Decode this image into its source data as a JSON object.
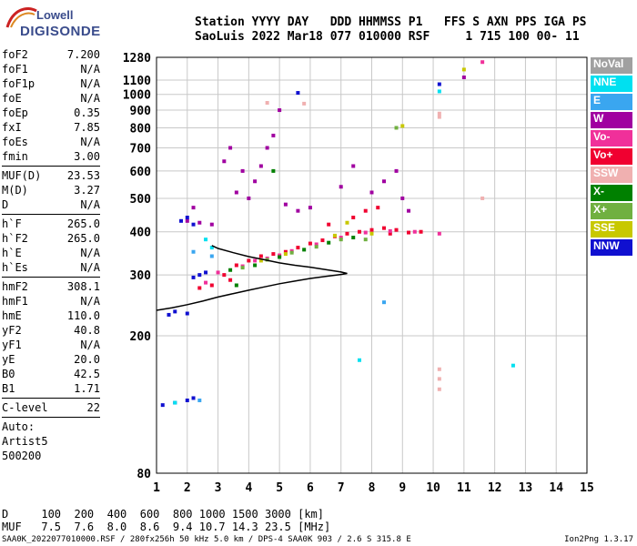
{
  "logo": {
    "line1": "Lowell",
    "line2": "DIGISONDE",
    "colors": [
      "#cc2222",
      "#dd8822",
      "#3a4c8c"
    ]
  },
  "header": {
    "row1": "Station YYYY DAY   DDD HHMMSS P1   FFS S AXN PPS IGA PS",
    "row2": "SaoLuis 2022 Mar18 077 010000 RSF     1 715 100 00- 11"
  },
  "params": {
    "group1": [
      {
        "name": "foF2",
        "value": "7.200"
      },
      {
        "name": "foF1",
        "value": "N/A"
      },
      {
        "name": "foF1p",
        "value": "N/A"
      },
      {
        "name": "foE",
        "value": "N/A"
      },
      {
        "name": "foEp",
        "value": "0.35"
      },
      {
        "name": "fxI",
        "value": "7.85"
      },
      {
        "name": "foEs",
        "value": "N/A"
      },
      {
        "name": "fmin",
        "value": "3.00"
      }
    ],
    "group2": [
      {
        "name": "MUF(D)",
        "value": "23.53"
      },
      {
        "name": "M(D)",
        "value": "3.27"
      },
      {
        "name": "D",
        "value": "N/A"
      }
    ],
    "group3": [
      {
        "name": "h`F",
        "value": "265.0"
      },
      {
        "name": "h`F2",
        "value": "265.0"
      },
      {
        "name": "h`E",
        "value": "N/A"
      },
      {
        "name": "h`Es",
        "value": "N/A"
      }
    ],
    "group4": [
      {
        "name": "hmF2",
        "value": "308.1"
      },
      {
        "name": "hmF1",
        "value": "N/A"
      },
      {
        "name": "hmE",
        "value": "110.0"
      },
      {
        "name": "yF2",
        "value": "40.8"
      },
      {
        "name": "yF1",
        "value": "N/A"
      },
      {
        "name": "yE",
        "value": "20.0"
      },
      {
        "name": "B0",
        "value": "42.5"
      },
      {
        "name": "B1",
        "value": "1.71"
      }
    ],
    "clevel": {
      "name": "C-level",
      "value": "22"
    },
    "notes": [
      "Auto:",
      "Artist5",
      "500200"
    ]
  },
  "legend": [
    {
      "label": "NoVal",
      "color": "#a0a0a0"
    },
    {
      "label": "NNE",
      "color": "#00e0f0"
    },
    {
      "label": "E",
      "color": "#3aa6f0"
    },
    {
      "label": "W",
      "color": "#a000a0"
    },
    {
      "label": "Vo-",
      "color": "#f0309a"
    },
    {
      "label": "Vo+",
      "color": "#f00030"
    },
    {
      "label": "SSW",
      "color": "#f0b0b0"
    },
    {
      "label": "X-",
      "color": "#008000"
    },
    {
      "label": "X+",
      "color": "#70b040"
    },
    {
      "label": "SSE",
      "color": "#c8c800"
    },
    {
      "label": "NNW",
      "color": "#1010d0"
    }
  ],
  "footer": {
    "row1": "D     100  200  400  600  800 1000 1500 3000 [km]",
    "row2": "MUF   7.5  7.6  8.0  8.6  9.4 10.7 14.3 23.5 [MHz]"
  },
  "bottom_line": "SAA0K_2022077010000.RSF / 280fx256h 50 kHz 5.0 km / DPS-4 SAA0K 903 / 2.6 S 315.8 E",
  "version": "Ion2Png 1.3.17",
  "chart_data": {
    "type": "scatter",
    "title": "",
    "xlabel": "",
    "ylabel": "",
    "xlim": [
      1,
      15
    ],
    "ylim": [
      80,
      1280
    ],
    "y_scale": "log",
    "grid": true,
    "x_ticks": [
      1,
      2,
      3,
      4,
      5,
      6,
      7,
      8,
      9,
      10,
      11,
      12,
      13,
      14,
      15
    ],
    "y_ticks": [
      80,
      200,
      300,
      400,
      500,
      600,
      700,
      800,
      900,
      1000,
      1100,
      1280
    ],
    "profile_curve": [
      [
        1.0,
        237
      ],
      [
        1.5,
        241
      ],
      [
        2.0,
        246
      ],
      [
        2.5,
        252
      ],
      [
        3.0,
        259
      ],
      [
        3.5,
        265
      ],
      [
        4.0,
        271
      ],
      [
        4.5,
        277
      ],
      [
        5.0,
        283
      ],
      [
        5.5,
        288
      ],
      [
        6.0,
        293
      ],
      [
        6.5,
        297
      ],
      [
        7.0,
        301
      ],
      [
        7.2,
        303
      ],
      [
        7.0,
        306
      ],
      [
        6.5,
        311
      ],
      [
        6.0,
        316
      ],
      [
        5.5,
        320
      ],
      [
        5.0,
        325
      ],
      [
        4.5,
        332
      ],
      [
        4.0,
        339
      ],
      [
        3.5,
        348
      ],
      [
        3.0,
        358
      ],
      [
        2.8,
        365
      ]
    ],
    "series": [
      {
        "name": "Vo+",
        "points": [
          [
            3.2,
            300
          ],
          [
            3.6,
            320
          ],
          [
            4.0,
            330
          ],
          [
            4.4,
            340
          ],
          [
            4.8,
            345
          ],
          [
            5.2,
            350
          ],
          [
            5.6,
            360
          ],
          [
            6.0,
            370
          ],
          [
            6.4,
            378
          ],
          [
            6.8,
            388
          ],
          [
            7.2,
            395
          ],
          [
            7.6,
            400
          ],
          [
            8.0,
            405
          ],
          [
            8.4,
            410
          ],
          [
            8.8,
            405
          ],
          [
            9.2,
            398
          ],
          [
            7.4,
            440
          ],
          [
            7.8,
            460
          ],
          [
            8.2,
            470
          ],
          [
            6.6,
            420
          ],
          [
            3.4,
            290
          ],
          [
            2.8,
            280
          ],
          [
            2.4,
            275
          ],
          [
            9.6,
            400
          ],
          [
            8.6,
            395
          ]
        ]
      },
      {
        "name": "Vo-",
        "points": [
          [
            3.0,
            305
          ],
          [
            3.8,
            318
          ],
          [
            4.6,
            335
          ],
          [
            5.4,
            352
          ],
          [
            6.2,
            368
          ],
          [
            7.0,
            385
          ],
          [
            7.8,
            398
          ],
          [
            8.6,
            402
          ],
          [
            9.4,
            400
          ],
          [
            10.2,
            395
          ],
          [
            2.6,
            285
          ],
          [
            4.2,
            330
          ],
          [
            5.0,
            342
          ],
          [
            11.6,
            1240
          ]
        ]
      },
      {
        "name": "W",
        "points": [
          [
            2.0,
            430
          ],
          [
            2.4,
            425
          ],
          [
            2.8,
            420
          ],
          [
            4.0,
            500
          ],
          [
            4.2,
            560
          ],
          [
            4.4,
            620
          ],
          [
            4.6,
            700
          ],
          [
            4.8,
            760
          ],
          [
            3.6,
            520
          ],
          [
            3.8,
            600
          ],
          [
            5.2,
            480
          ],
          [
            5.6,
            460
          ],
          [
            6.0,
            470
          ],
          [
            8.0,
            520
          ],
          [
            8.4,
            560
          ],
          [
            8.8,
            600
          ],
          [
            9.0,
            500
          ],
          [
            9.2,
            460
          ],
          [
            7.0,
            540
          ],
          [
            7.4,
            620
          ],
          [
            3.2,
            640
          ],
          [
            3.4,
            700
          ],
          [
            11.0,
            1120
          ],
          [
            2.2,
            470
          ],
          [
            5.0,
            900
          ]
        ]
      },
      {
        "name": "NNW",
        "points": [
          [
            1.8,
            430
          ],
          [
            2.0,
            440
          ],
          [
            2.2,
            420
          ],
          [
            1.4,
            230
          ],
          [
            1.6,
            235
          ],
          [
            2.0,
            232
          ],
          [
            1.2,
            126
          ],
          [
            1.6,
            128
          ],
          [
            2.0,
            130
          ],
          [
            2.2,
            132
          ],
          [
            2.4,
            300
          ],
          [
            2.6,
            305
          ],
          [
            2.2,
            295
          ],
          [
            5.6,
            1010
          ],
          [
            10.2,
            1070
          ]
        ]
      },
      {
        "name": "X-",
        "points": [
          [
            3.4,
            310
          ],
          [
            4.2,
            320
          ],
          [
            5.0,
            338
          ],
          [
            5.8,
            355
          ],
          [
            6.6,
            372
          ],
          [
            7.4,
            385
          ],
          [
            4.8,
            600
          ],
          [
            3.6,
            280
          ]
        ]
      },
      {
        "name": "X+",
        "points": [
          [
            3.8,
            315
          ],
          [
            4.6,
            332
          ],
          [
            5.4,
            348
          ],
          [
            6.2,
            362
          ],
          [
            7.0,
            380
          ],
          [
            8.8,
            800
          ],
          [
            7.8,
            380
          ]
        ]
      },
      {
        "name": "SSE",
        "points": [
          [
            4.4,
            330
          ],
          [
            5.2,
            345
          ],
          [
            6.8,
            390
          ],
          [
            8.0,
            395
          ],
          [
            7.2,
            425
          ],
          [
            9.0,
            810
          ],
          [
            11.0,
            1180
          ]
        ]
      },
      {
        "name": "SSW",
        "points": [
          [
            10.2,
            880
          ],
          [
            10.2,
            860
          ],
          [
            10.2,
            160
          ],
          [
            10.2,
            150
          ],
          [
            10.2,
            140
          ],
          [
            4.6,
            945
          ],
          [
            5.8,
            940
          ],
          [
            11.6,
            500
          ]
        ]
      },
      {
        "name": "NNE",
        "points": [
          [
            1.6,
            128
          ],
          [
            2.6,
            380
          ],
          [
            2.8,
            360
          ],
          [
            7.6,
            170
          ],
          [
            10.2,
            1020
          ],
          [
            12.6,
            164
          ]
        ]
      },
      {
        "name": "E",
        "points": [
          [
            2.2,
            350
          ],
          [
            2.8,
            340
          ],
          [
            8.4,
            250
          ],
          [
            2.4,
            130
          ]
        ]
      }
    ]
  }
}
